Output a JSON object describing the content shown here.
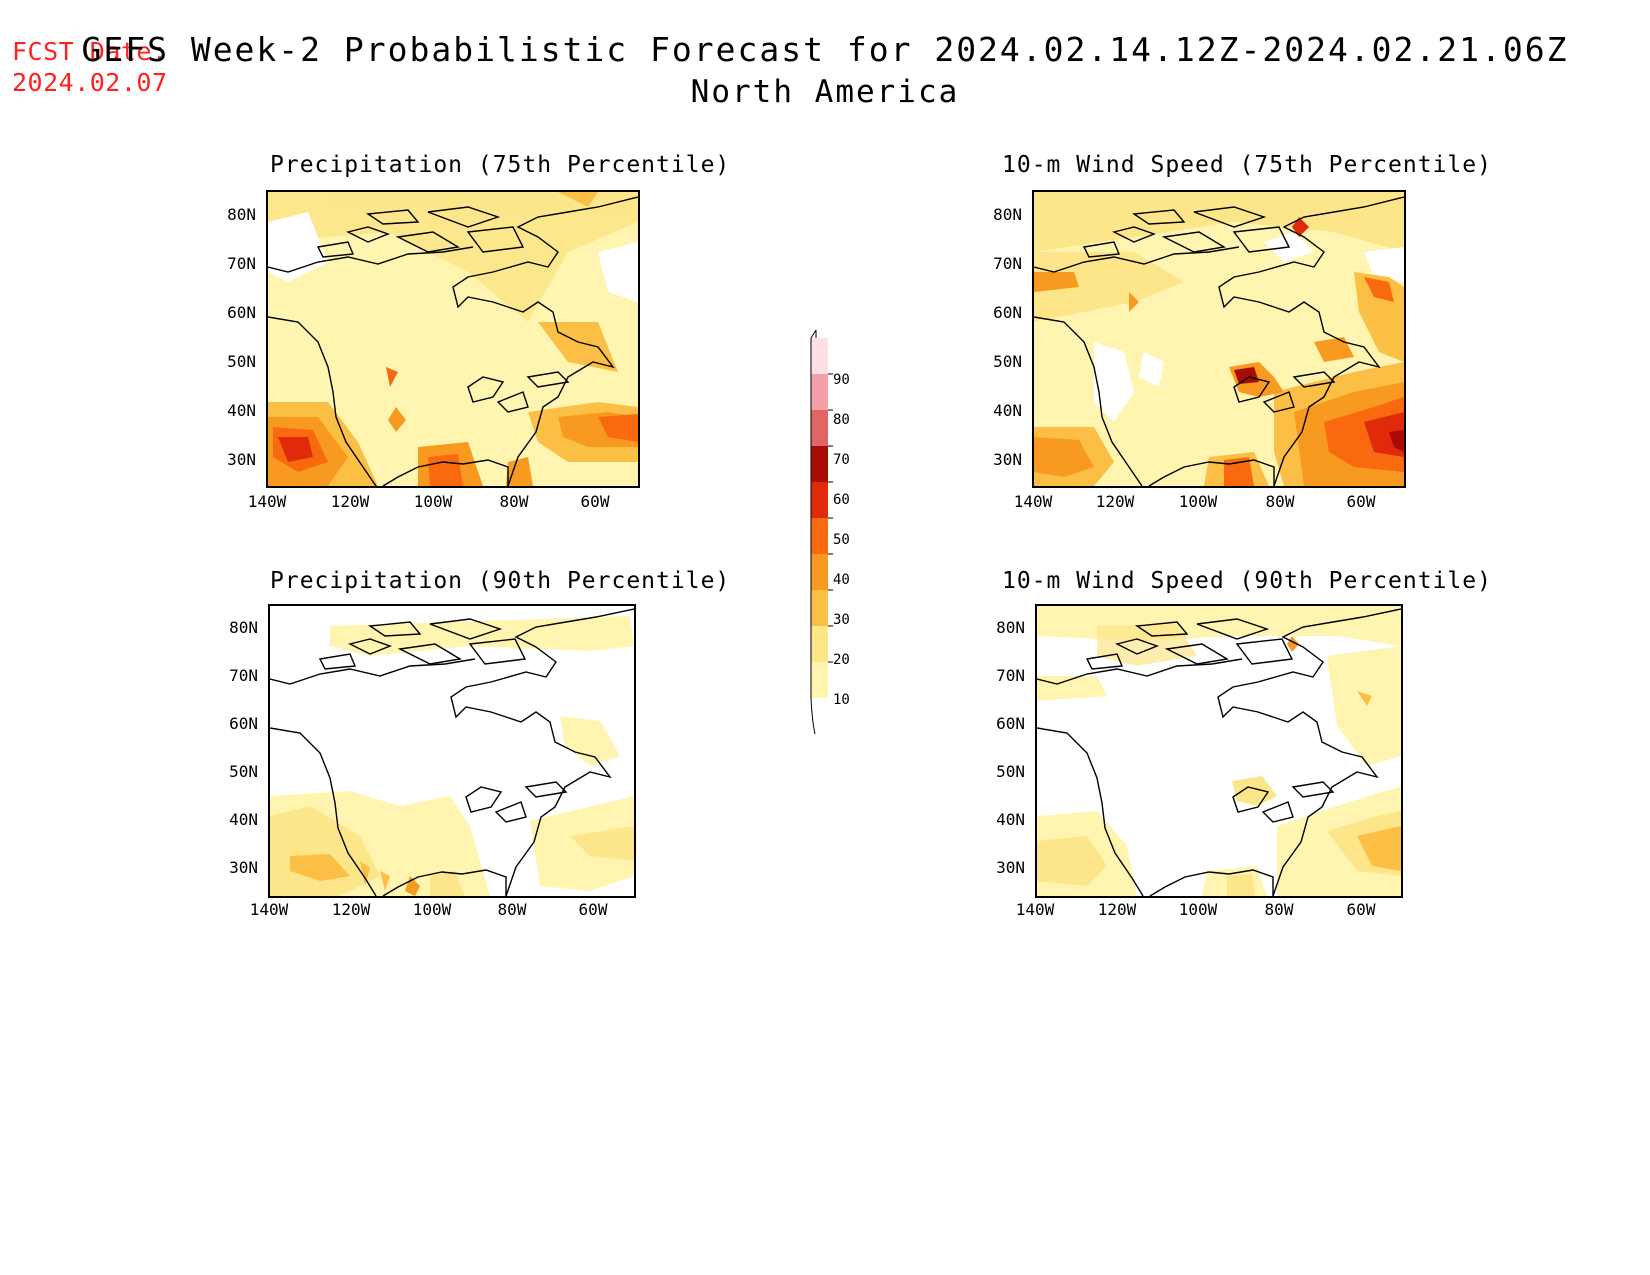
{
  "header": {
    "fcst_label": "FCST Date:",
    "fcst_date": "2024.02.07",
    "title": "GEFS Week-2 Probabilistic Forecast for 2024.02.14.12Z-2024.02.21.06Z",
    "subtitle": "North America"
  },
  "axes": {
    "lat_labels": [
      "80N",
      "70N",
      "60N",
      "50N",
      "40N",
      "30N"
    ],
    "lon_labels": [
      "140W",
      "120W",
      "100W",
      "80W",
      "60W"
    ],
    "lat_values": [
      80,
      70,
      60,
      50,
      40,
      30
    ],
    "lon_values": [
      -140,
      -120,
      -100,
      -80,
      -60
    ],
    "lat_range": [
      25,
      85
    ],
    "lon_range": [
      -140,
      -50
    ]
  },
  "panels": [
    {
      "id": "precip75",
      "title": "Precipitation (75th Percentile)"
    },
    {
      "id": "wind75",
      "title": "10-m Wind Speed (75th Percentile)"
    },
    {
      "id": "precip90",
      "title": "Precipitation (90th Percentile)"
    },
    {
      "id": "wind90",
      "title": "10-m Wind Speed (90th Percentile)"
    }
  ],
  "colorbar": {
    "levels": [
      "10",
      "20",
      "30",
      "40",
      "50",
      "60",
      "70",
      "80",
      "90"
    ],
    "colors": [
      "#fff5b0",
      "#fde68a",
      "#fbbf45",
      "#f99a20",
      "#f96a10",
      "#e02a0a",
      "#a80c05",
      "#e06666",
      "#f4a0a8",
      "#fde0e4"
    ]
  }
}
